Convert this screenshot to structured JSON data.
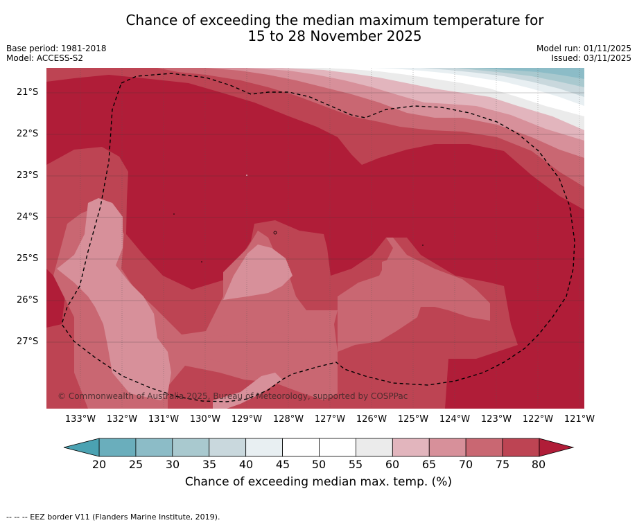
{
  "title_line1": "Chance of exceeding the median maximum temperature for",
  "title_line2": "15 to 28 November 2025",
  "base_period": "Base period: 1981-2018",
  "model": "Model: ACCESS-S2",
  "model_run": "Model run: 01/11/2025",
  "issued": "Issued: 03/11/2025",
  "lat_labels": [
    "21°S",
    "22°S",
    "23°S",
    "24°S",
    "25°S",
    "26°S",
    "27°S"
  ],
  "lon_labels": [
    "133°W",
    "132°W",
    "131°W",
    "130°W",
    "129°W",
    "128°W",
    "127°W",
    "126°W",
    "125°W",
    "124°W",
    "123°W",
    "122°W",
    "121°W"
  ],
  "copyright": "© Commonwealth of Australia 2025, Bureau of Meteorology, supported by COSPPac",
  "colorbar": {
    "labels": [
      "20",
      "25",
      "30",
      "35",
      "40",
      "45",
      "50",
      "55",
      "60",
      "65",
      "70",
      "75",
      "80"
    ],
    "colors": [
      "#6aaebc",
      "#8cbcc7",
      "#a9c9cf",
      "#c9d8dd",
      "#e8eff2",
      "#ffffff",
      "#ffffff",
      "#ebebeb",
      "#e2b5bd",
      "#d7909a",
      "#c96772",
      "#bd4453"
    ],
    "under_color": "#4ba2b2",
    "over_color": "#b01d38",
    "title": "Chance of exceeding median max. temp. (%)"
  },
  "footer": "-- -- -- EEZ border V11 (Flanders Marine Institute, 2019)."
}
